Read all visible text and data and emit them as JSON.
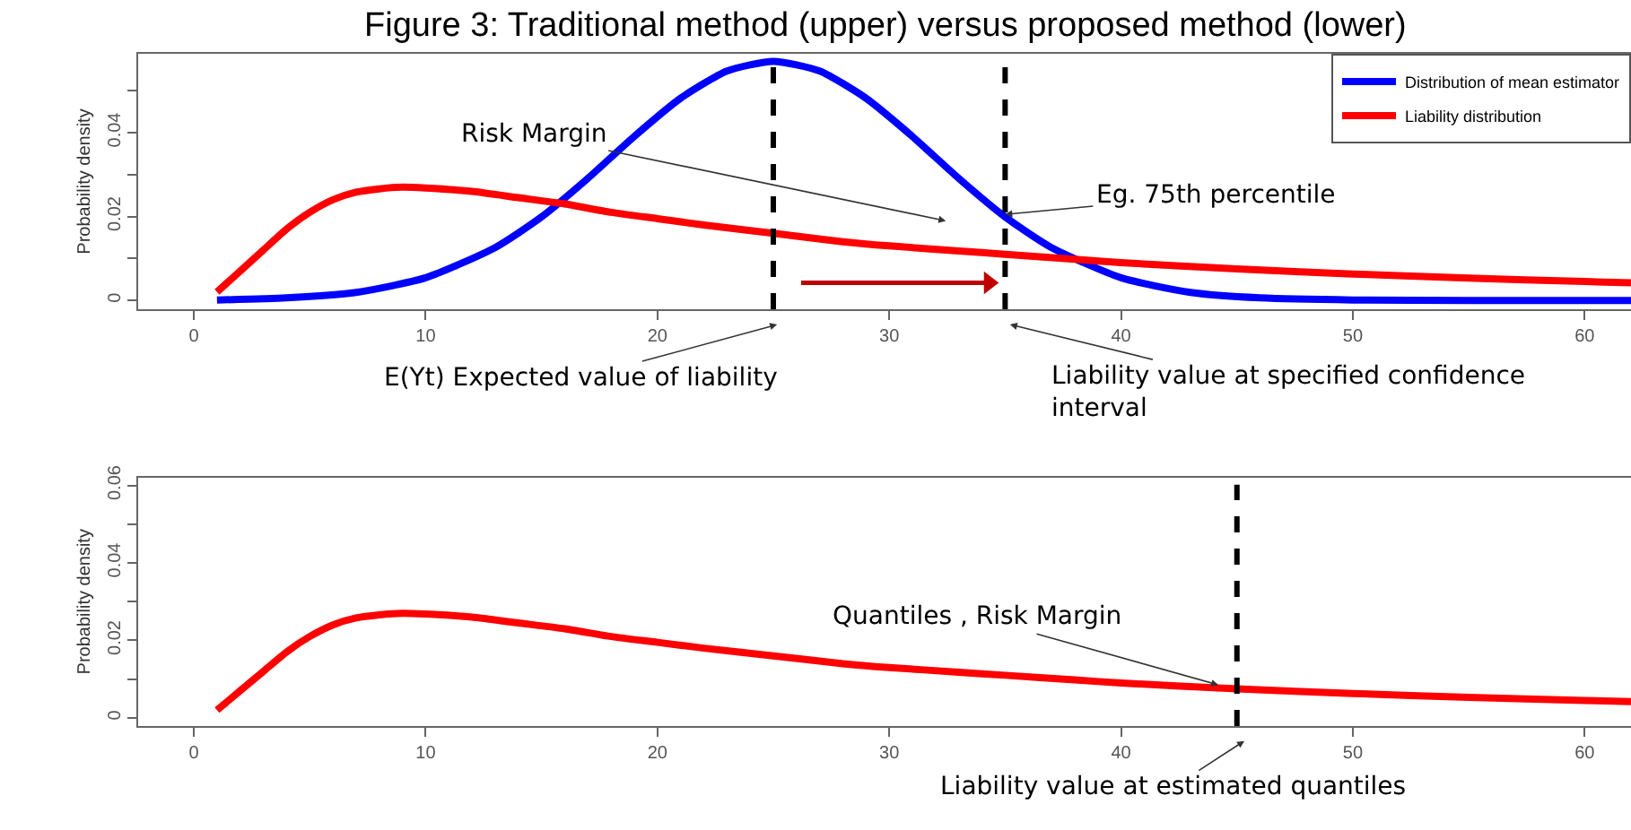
{
  "chart_data": [
    {
      "type": "line",
      "title": "Figure 3: Traditional method (upper) versus proposed method (lower)",
      "ylabel": "Probability density",
      "xlim": [
        -2.4,
        62
      ],
      "xticks": [
        0,
        10,
        20,
        30,
        40,
        50,
        60
      ],
      "ylim": [
        -0.0021,
        0.0588
      ],
      "yticks": [
        0,
        {
          "value": 0.01,
          "label": null
        },
        0.02,
        {
          "value": 0.03,
          "label": null
        },
        0.04,
        {
          "value": 0.05,
          "label": null
        }
      ],
      "legend": "top right",
      "series": [
        {
          "name": "Distribution of mean estimator",
          "color": "#0000ff",
          "x": [
            1,
            4,
            7,
            10,
            13,
            15,
            17,
            19,
            21,
            23,
            25,
            27,
            29,
            31,
            33,
            35,
            37,
            40,
            43,
            46,
            50,
            55,
            62
          ],
          "values": [
            0.0001,
            0.0006,
            0.0019,
            0.0054,
            0.0126,
            0.0199,
            0.0291,
            0.0391,
            0.0482,
            0.0547,
            0.057,
            0.0547,
            0.0482,
            0.0391,
            0.0291,
            0.0199,
            0.0126,
            0.0054,
            0.0019,
            0.0006,
            0.0001,
            0.0,
            0.0
          ]
        },
        {
          "name": "Liability distribution",
          "color": "#ff0000",
          "x": [
            1,
            2,
            3,
            4,
            5,
            6,
            7,
            8,
            9,
            10,
            12,
            14,
            16,
            18,
            20,
            22,
            25,
            28,
            30,
            33,
            35,
            38,
            40,
            45,
            50,
            55,
            60,
            62
          ],
          "values": [
            0.002,
            0.007,
            0.012,
            0.017,
            0.021,
            0.024,
            0.0258,
            0.0266,
            0.027,
            0.0268,
            0.026,
            0.0245,
            0.023,
            0.021,
            0.0195,
            0.018,
            0.016,
            0.014,
            0.013,
            0.0118,
            0.011,
            0.0098,
            0.009,
            0.0075,
            0.0063,
            0.0053,
            0.0045,
            0.0042
          ]
        },
        {
          "color": "#c00000",
          "marker": "triangle",
          "x": [
            26.2,
            34.3
          ],
          "values": [
            0.0042,
            0.0042
          ]
        }
      ],
      "ref_lines": [
        {
          "axis": "x",
          "value": 25,
          "color": "#000000",
          "line_style": "dashed"
        },
        {
          "axis": "x",
          "value": 35,
          "color": "#000000",
          "line_style": "dashed"
        }
      ],
      "annotations": [
        "Risk Margin",
        {
          "text": "Eg. 75th percentile",
          "x": 35,
          "y": 0.0205
        },
        "E(Yt) Expected value of liability",
        "Liability value at specified confidence\ninterval"
      ]
    },
    {
      "type": "line",
      "ylabel": "Probability density",
      "xlim": [
        -2.4,
        62
      ],
      "xticks": [
        0,
        10,
        20,
        30,
        40,
        50,
        60
      ],
      "ylim": [
        -0.0021,
        0.0621
      ],
      "yticks": [
        0,
        {
          "value": 0.01,
          "label": null
        },
        0.02,
        {
          "value": 0.03,
          "label": null
        },
        0.04,
        {
          "value": 0.05,
          "label": null
        },
        0.06
      ],
      "legend": false,
      "series": [
        {
          "color": "#ff0000",
          "x": [
            1,
            2,
            3,
            4,
            5,
            6,
            7,
            8,
            9,
            10,
            12,
            14,
            16,
            18,
            20,
            22,
            25,
            28,
            30,
            33,
            35,
            38,
            40,
            45,
            50,
            55,
            60,
            62
          ],
          "values": [
            0.002,
            0.007,
            0.012,
            0.017,
            0.021,
            0.024,
            0.0258,
            0.0266,
            0.027,
            0.0268,
            0.026,
            0.0245,
            0.023,
            0.021,
            0.0195,
            0.018,
            0.016,
            0.014,
            0.013,
            0.0118,
            0.011,
            0.0098,
            0.009,
            0.0075,
            0.0063,
            0.0053,
            0.0045,
            0.0042
          ]
        }
      ],
      "ref_lines": [
        {
          "axis": "x",
          "value": 45,
          "color": "#000000",
          "line_style": "dashed"
        }
      ],
      "annotations": [
        {
          "text": "Quantiles , Risk Margin",
          "x": 44.2,
          "y": 0.0085
        },
        "Liability value at estimated quantiles"
      ]
    }
  ]
}
